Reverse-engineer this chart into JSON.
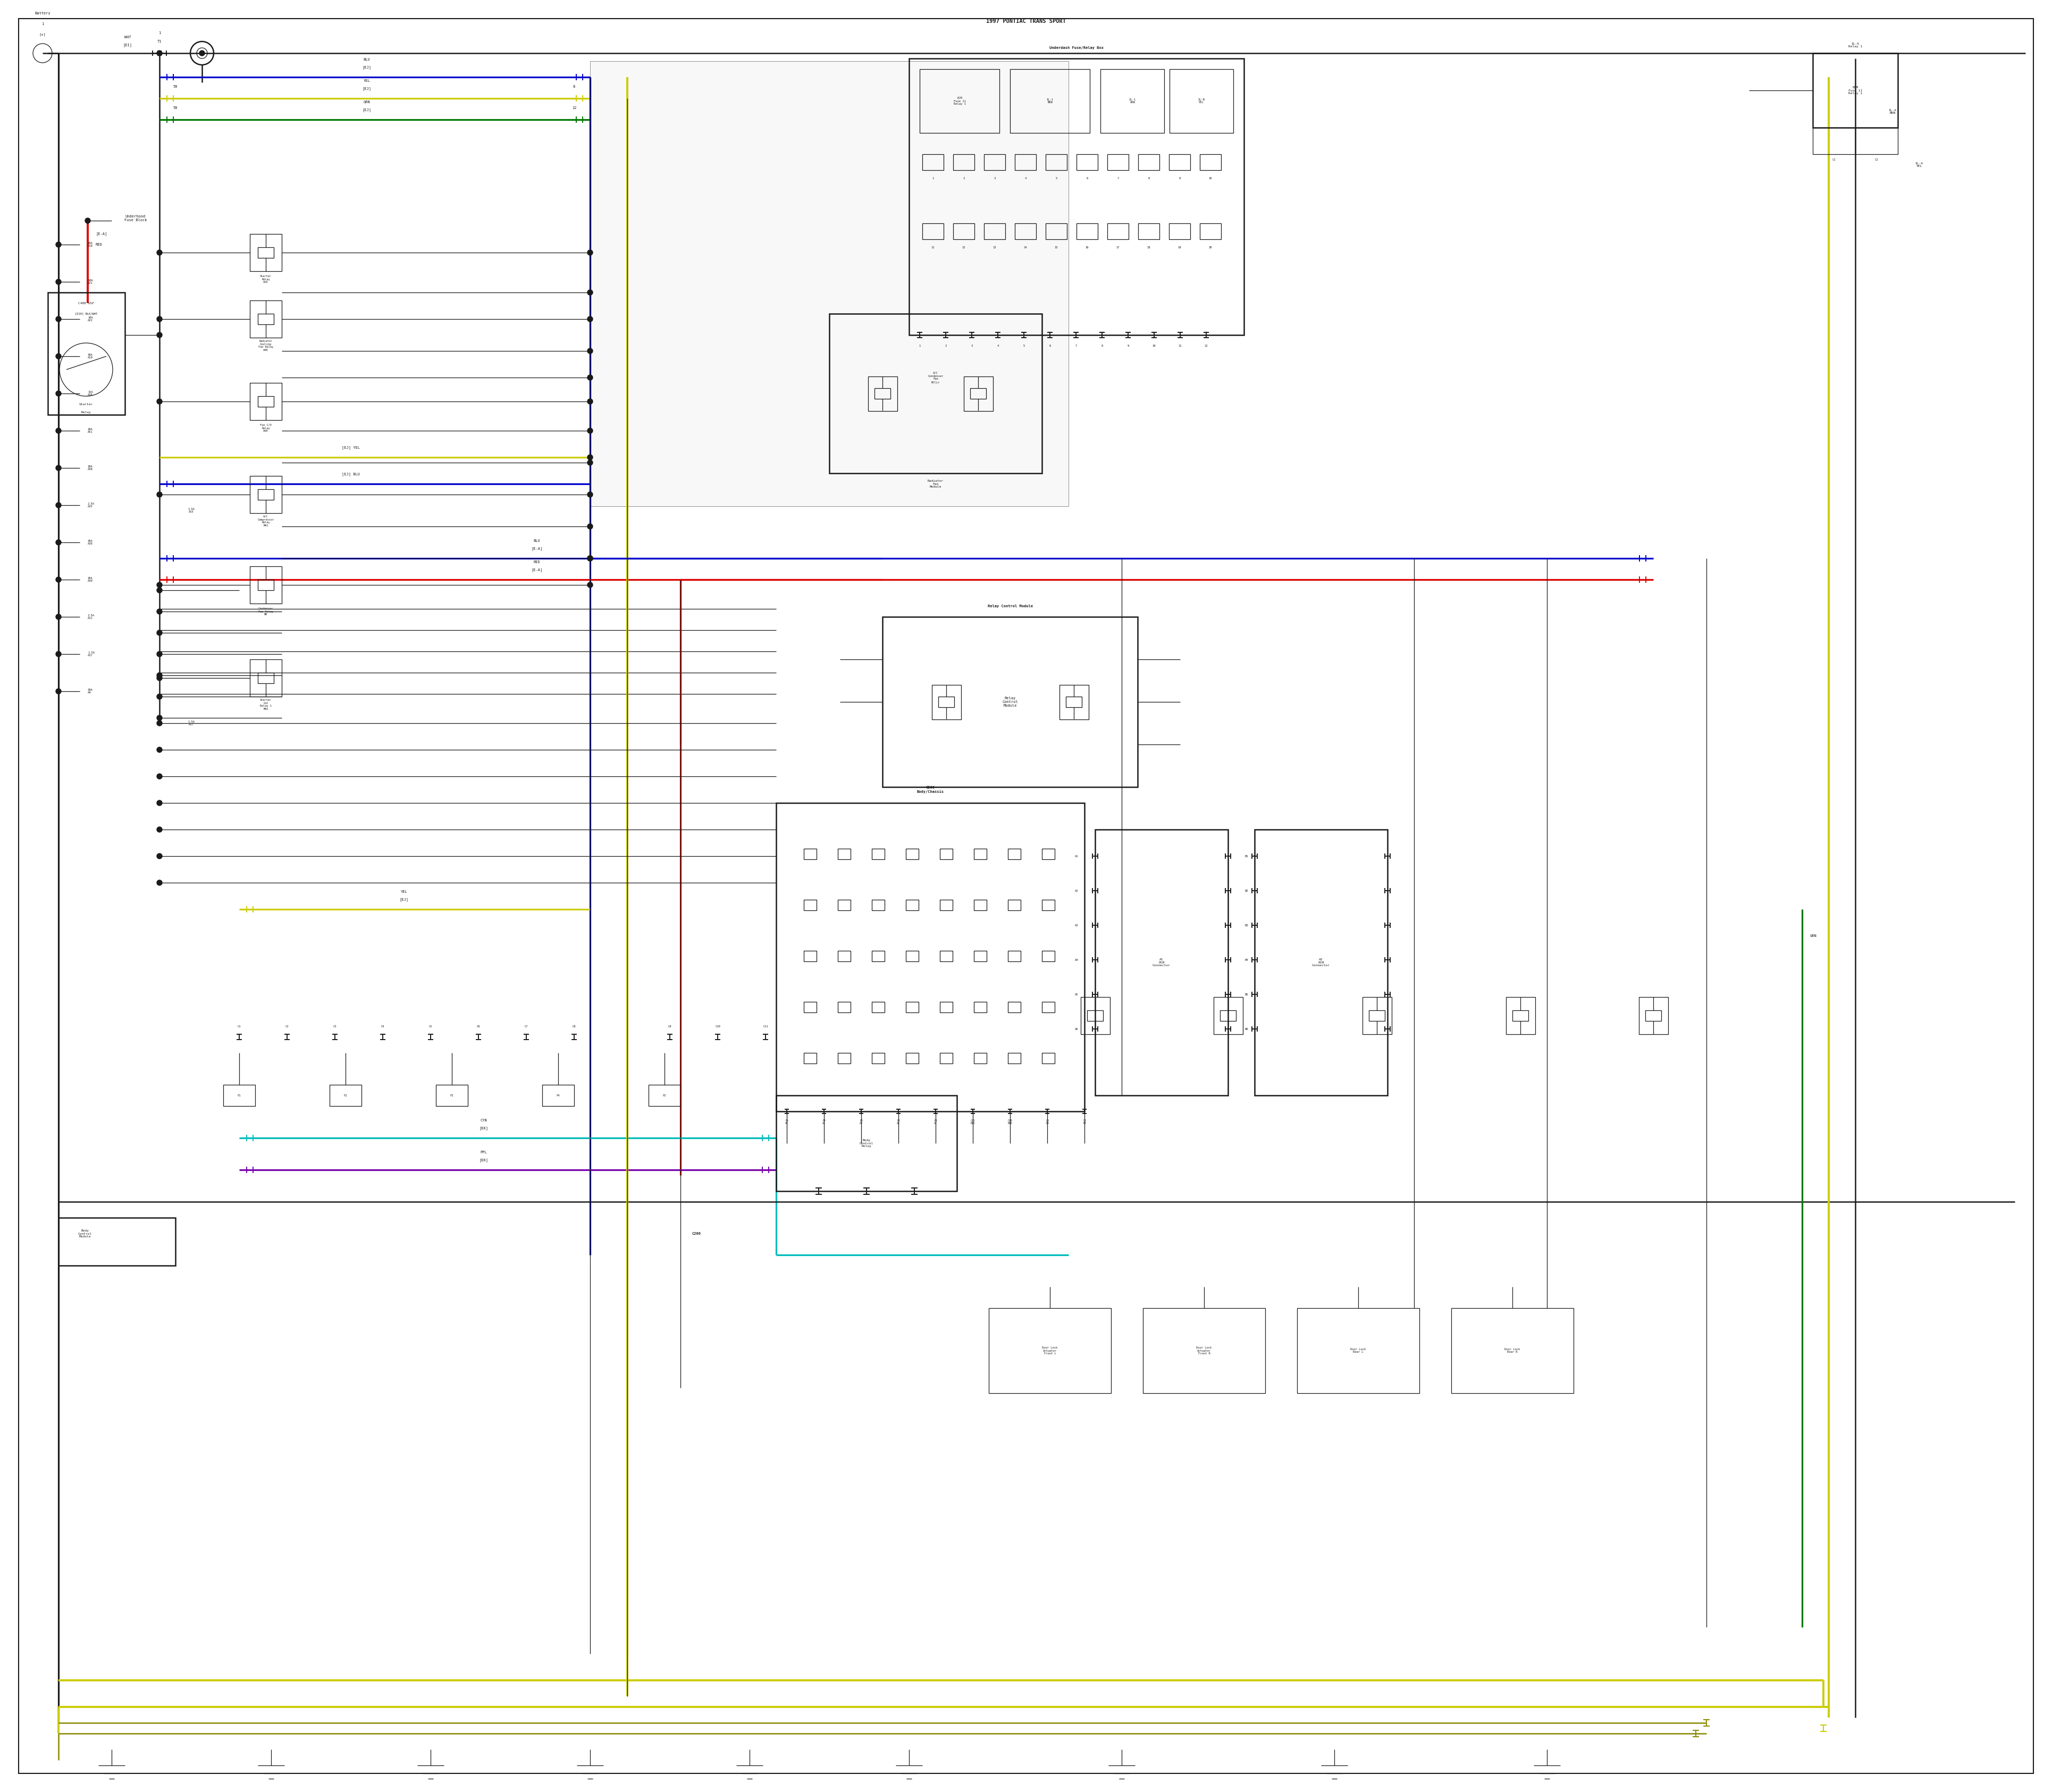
{
  "bg_color": "#ffffff",
  "fig_width": 38.4,
  "fig_height": 33.5,
  "colors": {
    "black": "#1a1a1a",
    "red": "#dd0000",
    "blue": "#0000cc",
    "yellow": "#cccc00",
    "green": "#007700",
    "cyan": "#00bbbb",
    "purple": "#7700aa",
    "dark_yellow": "#888800",
    "gray": "#666666"
  },
  "wire_lw": 1.8,
  "thin_lw": 0.9,
  "border_lw": 1.5
}
